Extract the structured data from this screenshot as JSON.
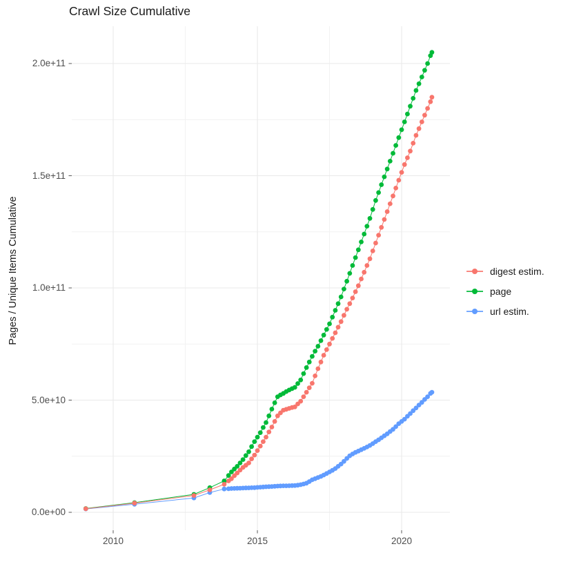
{
  "title": "Crawl Size Cumulative",
  "y_axis": {
    "title": "Pages / Unique Items Cumulative",
    "tick_labels": [
      "0.0e+00",
      "5.0e+10",
      "1.0e+11",
      "1.5e+11",
      "2.0e+11"
    ],
    "tick_values_billions": [
      0,
      50,
      100,
      150,
      200
    ],
    "minor_gridlines_billions": [
      25,
      75,
      125,
      175
    ]
  },
  "x_axis": {
    "tick_labels": [
      "2010",
      "2015",
      "2020"
    ],
    "tick_values": [
      2010,
      2015,
      2020
    ],
    "minor_gridlines": [
      2012.5,
      2017.5
    ]
  },
  "legend": {
    "items": [
      {
        "label": "digest estim.",
        "color": "#F8766D"
      },
      {
        "label": "page",
        "color": "#00BA38"
      },
      {
        "label": "url estim.",
        "color": "#619CFF"
      }
    ]
  },
  "chart_data": {
    "type": "scatter",
    "note": "points are [year, cumulative count in billions (value x 1e9)]; dots connected by thin lines",
    "title": "Crawl Size Cumulative",
    "xlabel": "",
    "ylabel": "Pages / Unique Items Cumulative",
    "xlim": [
      2008.5,
      2021.6
    ],
    "ylim_billions": [
      0,
      216
    ],
    "grid": true,
    "legend_position": "right",
    "series": [
      {
        "name": "digest estim.",
        "color": "#F8766D",
        "points": [
          [
            2009.05,
            1.6
          ],
          [
            2010.74,
            4.1
          ],
          [
            2012.8,
            7.5
          ],
          [
            2013.35,
            10
          ],
          [
            2013.85,
            12.5
          ],
          [
            2014,
            14
          ],
          [
            2014.1,
            15
          ],
          [
            2014.2,
            16.3
          ],
          [
            2014.3,
            17.5
          ],
          [
            2014.4,
            18.8
          ],
          [
            2014.5,
            20
          ],
          [
            2014.6,
            21
          ],
          [
            2014.7,
            22
          ],
          [
            2014.8,
            23.8
          ],
          [
            2014.9,
            25.5
          ],
          [
            2015,
            27.5
          ],
          [
            2015.1,
            29.5
          ],
          [
            2015.2,
            31.5
          ],
          [
            2015.3,
            33.5
          ],
          [
            2015.4,
            35.8
          ],
          [
            2015.5,
            38
          ],
          [
            2015.6,
            40.5
          ],
          [
            2015.7,
            43
          ],
          [
            2015.8,
            44.3
          ],
          [
            2015.9,
            45.5
          ],
          [
            2016,
            45.9
          ],
          [
            2016.1,
            46.3
          ],
          [
            2016.2,
            46.7
          ],
          [
            2016.3,
            47
          ],
          [
            2016.4,
            48.3
          ],
          [
            2016.5,
            49.5
          ],
          [
            2016.6,
            51.5
          ],
          [
            2016.7,
            53.5
          ],
          [
            2016.8,
            55.5
          ],
          [
            2016.9,
            57.5
          ],
          [
            2017,
            60.8
          ],
          [
            2017.1,
            64
          ],
          [
            2017.2,
            67
          ],
          [
            2017.3,
            70
          ],
          [
            2017.4,
            72.5
          ],
          [
            2017.5,
            75
          ],
          [
            2017.6,
            77.5
          ],
          [
            2017.7,
            80
          ],
          [
            2017.8,
            82.5
          ],
          [
            2017.9,
            85
          ],
          [
            2018,
            87.8
          ],
          [
            2018.1,
            90.5
          ],
          [
            2018.2,
            93
          ],
          [
            2018.3,
            95.5
          ],
          [
            2018.4,
            98.3
          ],
          [
            2018.5,
            101
          ],
          [
            2018.6,
            104
          ],
          [
            2018.7,
            107
          ],
          [
            2018.8,
            110
          ],
          [
            2018.9,
            113
          ],
          [
            2019,
            116.5
          ],
          [
            2019.1,
            120
          ],
          [
            2019.2,
            123.5
          ],
          [
            2019.3,
            127
          ],
          [
            2019.4,
            130.5
          ],
          [
            2019.5,
            134
          ],
          [
            2019.6,
            137.5
          ],
          [
            2019.7,
            141
          ],
          [
            2019.8,
            144.5
          ],
          [
            2019.9,
            148
          ],
          [
            2020,
            151.5
          ],
          [
            2020.1,
            155
          ],
          [
            2020.2,
            158
          ],
          [
            2020.3,
            161
          ],
          [
            2020.4,
            164.5
          ],
          [
            2020.5,
            168
          ],
          [
            2020.6,
            171
          ],
          [
            2020.7,
            174
          ],
          [
            2020.8,
            177
          ],
          [
            2020.9,
            180
          ],
          [
            2021,
            183
          ],
          [
            2021.05,
            185
          ]
        ]
      },
      {
        "name": "page",
        "color": "#00BA38",
        "points": [
          [
            2009.05,
            1.7
          ],
          [
            2010.74,
            4.3
          ],
          [
            2012.8,
            8
          ],
          [
            2013.35,
            11
          ],
          [
            2013.85,
            14
          ],
          [
            2014,
            16.4
          ],
          [
            2014.1,
            18
          ],
          [
            2014.2,
            19.3
          ],
          [
            2014.3,
            20.5
          ],
          [
            2014.4,
            22
          ],
          [
            2014.5,
            23.5
          ],
          [
            2014.6,
            25.3
          ],
          [
            2014.7,
            27
          ],
          [
            2014.8,
            29.3
          ],
          [
            2014.9,
            31.5
          ],
          [
            2015,
            33.5
          ],
          [
            2015.1,
            35.5
          ],
          [
            2015.2,
            37.8
          ],
          [
            2015.3,
            40
          ],
          [
            2015.4,
            43
          ],
          [
            2015.5,
            46
          ],
          [
            2015.6,
            48.8
          ],
          [
            2015.7,
            51.5
          ],
          [
            2015.8,
            52.3
          ],
          [
            2015.9,
            53
          ],
          [
            2016,
            53.8
          ],
          [
            2016.1,
            54.5
          ],
          [
            2016.2,
            55.1
          ],
          [
            2016.3,
            55.7
          ],
          [
            2016.4,
            57.4
          ],
          [
            2016.5,
            59
          ],
          [
            2016.6,
            61.8
          ],
          [
            2016.7,
            64.5
          ],
          [
            2016.8,
            67
          ],
          [
            2016.9,
            69.5
          ],
          [
            2017,
            71.8
          ],
          [
            2017.1,
            74
          ],
          [
            2017.2,
            76.5
          ],
          [
            2017.3,
            79
          ],
          [
            2017.4,
            81.5
          ],
          [
            2017.5,
            84
          ],
          [
            2017.6,
            87
          ],
          [
            2017.7,
            90
          ],
          [
            2017.8,
            93
          ],
          [
            2017.9,
            96
          ],
          [
            2018,
            99.5
          ],
          [
            2018.1,
            103
          ],
          [
            2018.2,
            106.5
          ],
          [
            2018.3,
            110
          ],
          [
            2018.4,
            113.5
          ],
          [
            2018.5,
            117
          ],
          [
            2018.6,
            120.5
          ],
          [
            2018.7,
            124
          ],
          [
            2018.8,
            127.5
          ],
          [
            2018.9,
            131
          ],
          [
            2019,
            135
          ],
          [
            2019.1,
            139
          ],
          [
            2019.2,
            142.5
          ],
          [
            2019.3,
            146
          ],
          [
            2019.4,
            149.5
          ],
          [
            2019.5,
            153
          ],
          [
            2019.6,
            156.5
          ],
          [
            2019.7,
            160
          ],
          [
            2019.8,
            163.5
          ],
          [
            2019.9,
            167
          ],
          [
            2020,
            170.5
          ],
          [
            2020.1,
            174
          ],
          [
            2020.2,
            177.5
          ],
          [
            2020.3,
            181
          ],
          [
            2020.4,
            184.5
          ],
          [
            2020.5,
            188
          ],
          [
            2020.6,
            191
          ],
          [
            2020.7,
            194
          ],
          [
            2020.8,
            197
          ],
          [
            2020.9,
            200
          ],
          [
            2021,
            203.5
          ],
          [
            2021.05,
            205
          ]
        ]
      },
      {
        "name": "url estim.",
        "color": "#619CFF",
        "points": [
          [
            2009.05,
            1.5
          ],
          [
            2010.74,
            3.6
          ],
          [
            2012.8,
            6.4
          ],
          [
            2013.35,
            8.8
          ],
          [
            2013.85,
            10.4
          ],
          [
            2014,
            10.5
          ],
          [
            2014.1,
            10.6
          ],
          [
            2014.2,
            10.65
          ],
          [
            2014.3,
            10.7
          ],
          [
            2014.4,
            10.75
          ],
          [
            2014.5,
            10.8
          ],
          [
            2014.6,
            10.85
          ],
          [
            2014.7,
            10.9
          ],
          [
            2014.8,
            10.95
          ],
          [
            2014.9,
            11
          ],
          [
            2015,
            11.1
          ],
          [
            2015.1,
            11.2
          ],
          [
            2015.2,
            11.3
          ],
          [
            2015.3,
            11.4
          ],
          [
            2015.4,
            11.45
          ],
          [
            2015.5,
            11.5
          ],
          [
            2015.6,
            11.6
          ],
          [
            2015.7,
            11.7
          ],
          [
            2015.8,
            11.75
          ],
          [
            2015.9,
            11.8
          ],
          [
            2016,
            11.8
          ],
          [
            2016.1,
            11.85
          ],
          [
            2016.2,
            11.9
          ],
          [
            2016.3,
            11.95
          ],
          [
            2016.4,
            12.1
          ],
          [
            2016.5,
            12.3
          ],
          [
            2016.6,
            12.6
          ],
          [
            2016.7,
            13
          ],
          [
            2016.8,
            13.7
          ],
          [
            2016.9,
            14.5
          ],
          [
            2017,
            15
          ],
          [
            2017.1,
            15.5
          ],
          [
            2017.2,
            16
          ],
          [
            2017.3,
            16.6
          ],
          [
            2017.4,
            17.3
          ],
          [
            2017.5,
            18
          ],
          [
            2017.6,
            18.7
          ],
          [
            2017.7,
            19.5
          ],
          [
            2017.8,
            20.5
          ],
          [
            2017.9,
            21.5
          ],
          [
            2018,
            22.7
          ],
          [
            2018.1,
            24
          ],
          [
            2018.2,
            25.2
          ],
          [
            2018.3,
            26
          ],
          [
            2018.4,
            26.7
          ],
          [
            2018.5,
            27.3
          ],
          [
            2018.6,
            27.9
          ],
          [
            2018.7,
            28.5
          ],
          [
            2018.8,
            29.1
          ],
          [
            2018.9,
            29.8
          ],
          [
            2019,
            30.6
          ],
          [
            2019.1,
            31.5
          ],
          [
            2019.2,
            32.3
          ],
          [
            2019.3,
            33.2
          ],
          [
            2019.4,
            34.1
          ],
          [
            2019.5,
            35
          ],
          [
            2019.6,
            36
          ],
          [
            2019.7,
            37
          ],
          [
            2019.8,
            38.2
          ],
          [
            2019.9,
            39.5
          ],
          [
            2020,
            40.5
          ],
          [
            2020.1,
            41.5
          ],
          [
            2020.2,
            42.8
          ],
          [
            2020.3,
            44
          ],
          [
            2020.4,
            45.3
          ],
          [
            2020.5,
            46.5
          ],
          [
            2020.6,
            47.8
          ],
          [
            2020.7,
            49
          ],
          [
            2020.8,
            50.3
          ],
          [
            2020.9,
            51.5
          ],
          [
            2021,
            53
          ],
          [
            2021.05,
            53.5
          ]
        ]
      }
    ]
  }
}
